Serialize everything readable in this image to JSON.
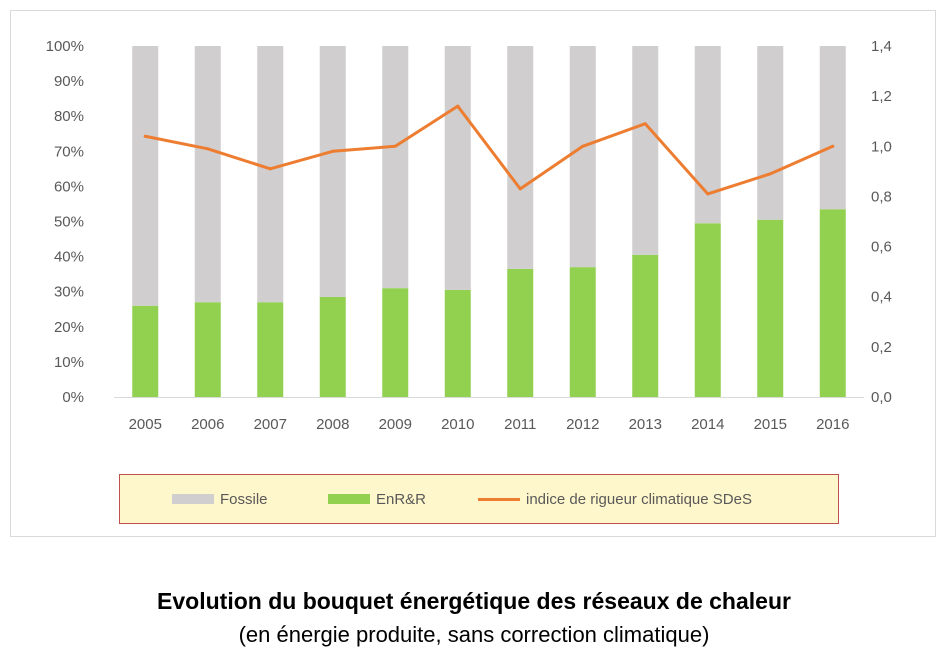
{
  "chart_data": {
    "type": "bar",
    "stacked_percent": true,
    "categories": [
      "2005",
      "2006",
      "2007",
      "2008",
      "2009",
      "2010",
      "2011",
      "2012",
      "2013",
      "2014",
      "2015",
      "2016"
    ],
    "series": [
      {
        "name": "EnR&R",
        "kind": "bar",
        "axis": "left",
        "color": "#92d050",
        "values": [
          26,
          27,
          27,
          28.5,
          31,
          30.5,
          36.5,
          37,
          40.5,
          49.5,
          50.5,
          53.5
        ]
      },
      {
        "name": "Fossile",
        "kind": "bar",
        "axis": "left",
        "color": "#d0cece",
        "values": [
          74,
          73,
          73,
          71.5,
          69,
          69.5,
          63.5,
          63,
          59.5,
          50.5,
          49.5,
          46.5
        ]
      },
      {
        "name": "indice de rigueur climatique SDeS",
        "kind": "line",
        "axis": "right",
        "color": "#ed7d31",
        "values": [
          1.04,
          0.99,
          0.91,
          0.98,
          1.0,
          1.16,
          0.83,
          1.0,
          1.09,
          0.81,
          0.89,
          1.0
        ]
      }
    ],
    "y_left": {
      "min": 0,
      "max": 100,
      "step": 10,
      "tick_labels": [
        "0%",
        "10%",
        "20%",
        "30%",
        "40%",
        "50%",
        "60%",
        "70%",
        "80%",
        "90%",
        "100%"
      ]
    },
    "y_right": {
      "min": 0,
      "max": 1.4,
      "step": 0.2,
      "tick_labels": [
        "0,0",
        "0,2",
        "0,4",
        "0,6",
        "0,8",
        "1,0",
        "1,2",
        "1,4"
      ]
    },
    "grid": false,
    "legend": {
      "placement": "bottom",
      "background": "#fff7cc",
      "border": "#c0504d",
      "items": [
        {
          "label": "Fossile",
          "color": "#d0cece",
          "shape": "rect"
        },
        {
          "label": "EnR&R",
          "color": "#92d050",
          "shape": "rect"
        },
        {
          "label": "indice de rigueur climatique SDeS",
          "color": "#ed7d31",
          "shape": "line"
        }
      ]
    }
  },
  "caption": {
    "title": "Evolution du bouquet énergétique des réseaux de chaleur",
    "subtitle": "(en énergie produite, sans correction climatique)"
  }
}
